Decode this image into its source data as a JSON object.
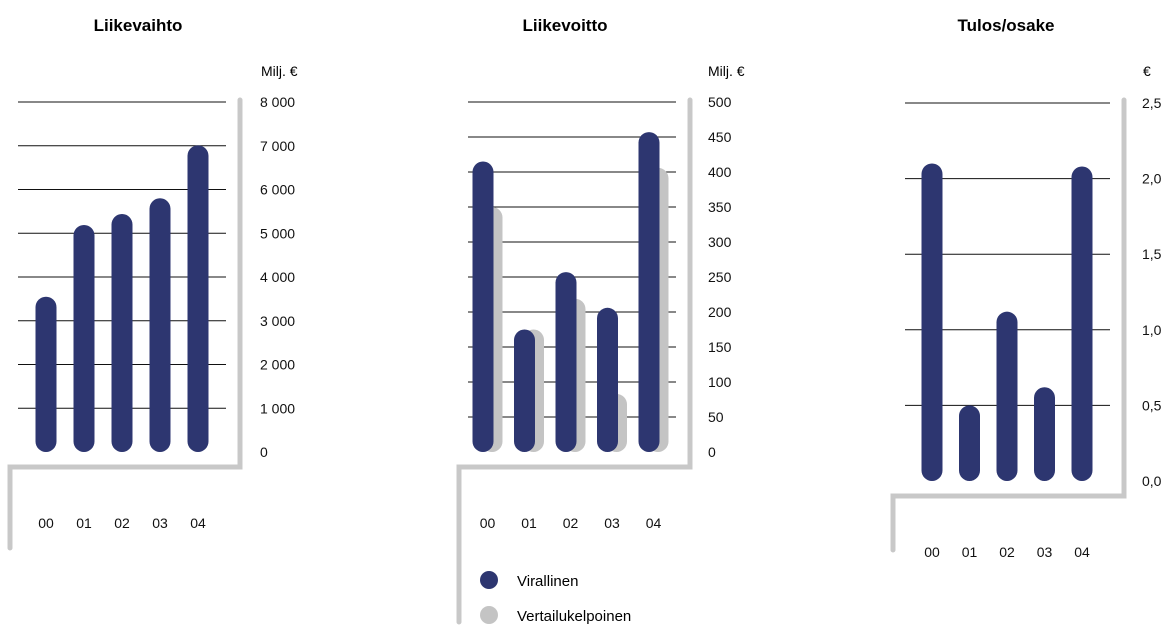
{
  "colors": {
    "official": "#2d3670",
    "comparable": "#c4c4c4",
    "gridline": "#111111",
    "frame": "#c8c8c8"
  },
  "legend": {
    "official": "Virallinen",
    "comparable": "Vertailukelpoinen"
  },
  "chart_data": [
    {
      "type": "bar",
      "title": "Liikevaihto",
      "unit": "Milj. €",
      "categories": [
        "00",
        "01",
        "02",
        "03",
        "04"
      ],
      "series": [
        {
          "values": [
            3550,
            5190,
            5440,
            5800,
            7010
          ]
        }
      ],
      "ylim": [
        0,
        8000
      ],
      "yticks": [
        "0",
        "1 000",
        "2 000",
        "3 000",
        "4 000",
        "5 000",
        "6 000",
        "7 000",
        "8 000"
      ],
      "grid": true
    },
    {
      "type": "bar",
      "title": "Liikevoitto",
      "unit": "Milj. €",
      "categories": [
        "00",
        "01",
        "02",
        "03",
        "04"
      ],
      "series": [
        {
          "name": "Virallinen",
          "values": [
            415,
            175,
            257,
            206,
            457
          ]
        },
        {
          "name": "Vertailukelpoinen",
          "values": [
            350,
            175,
            219,
            83,
            406
          ]
        }
      ],
      "ylim": [
        0,
        500
      ],
      "yticks": [
        "0",
        "50",
        "100",
        "150",
        "200",
        "250",
        "300",
        "350",
        "400",
        "450",
        "500"
      ],
      "grid": true,
      "legend_position": "bottom"
    },
    {
      "type": "bar",
      "title": "Tulos/osake",
      "unit": "€",
      "categories": [
        "00",
        "01",
        "02",
        "03",
        "04"
      ],
      "series": [
        {
          "values": [
            2.1,
            0.5,
            1.12,
            0.62,
            2.08
          ]
        }
      ],
      "ylim": [
        0,
        2.5
      ],
      "yticks": [
        "0,0",
        "0,5",
        "1,0",
        "1,5",
        "2,0",
        "2,5"
      ],
      "grid": true
    }
  ]
}
